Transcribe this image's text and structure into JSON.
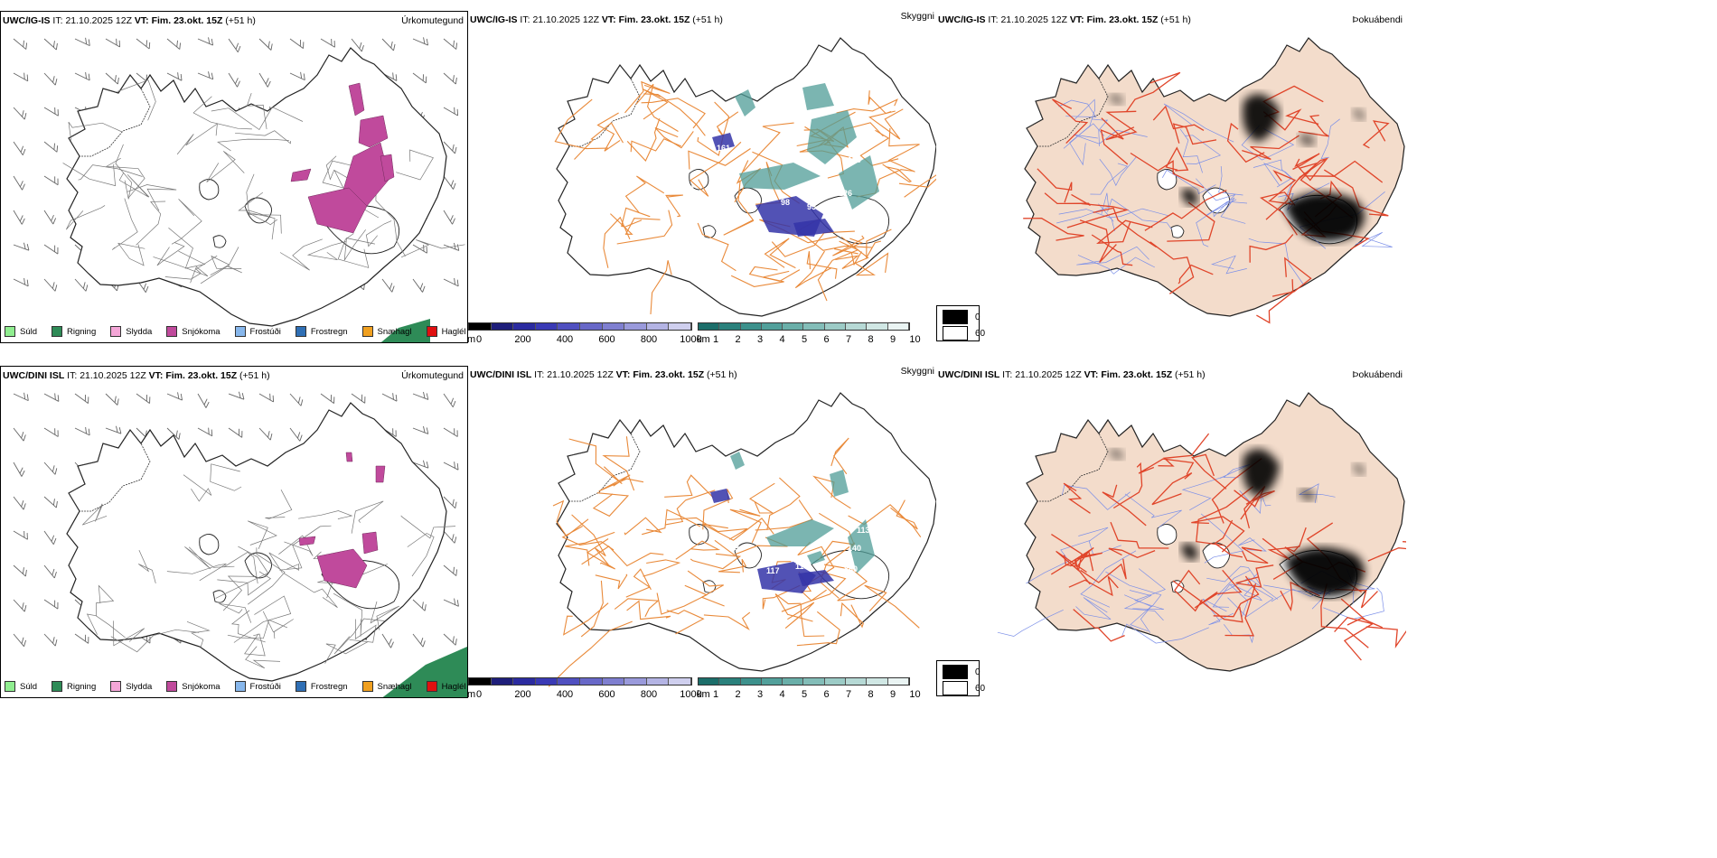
{
  "rows": [
    {
      "model": "UWC/IG-IS",
      "it_label": "IT:",
      "it_value": "21.10.2025 12Z",
      "vt_label": "VT:",
      "vt_value": "Fim. 23.okt. 15Z",
      "lead": "(+51 h)",
      "panel_titles": [
        "Úrkomutegund",
        "Skyggni",
        "Þokuábendi"
      ],
      "visibility_labels": [
        "161",
        "95",
        "149",
        "164",
        "140",
        "126",
        "98",
        "153"
      ]
    },
    {
      "model": "UWC/DINI ISL",
      "it_label": "IT:",
      "it_value": "21.10.2025 12Z",
      "vt_label": "VT:",
      "vt_value": "Fim. 23.okt. 15Z",
      "lead": "(+51 h)",
      "panel_titles": [
        "Úrkomutegund",
        "Skyggni",
        "Þokuábendi"
      ],
      "visibility_labels": [
        "117",
        "118",
        "860",
        "140",
        "113",
        "23"
      ]
    }
  ],
  "precip_legend": [
    {
      "label": "Súld",
      "color": "#90ee90"
    },
    {
      "label": "Rigning",
      "color": "#2e8b57"
    },
    {
      "label": "Slydda",
      "color": "#f4a6d7"
    },
    {
      "label": "Snjókoma",
      "color": "#c04a9c"
    },
    {
      "label": "Frostúði",
      "color": "#87b7ec"
    },
    {
      "label": "Frostregn",
      "color": "#2f6fb5"
    },
    {
      "label": "Snæhagl",
      "color": "#f0a020"
    },
    {
      "label": "Haglél",
      "color": "#e01010"
    }
  ],
  "cloud_base_scale": {
    "unit": "m",
    "ticks": [
      "0",
      "200",
      "400",
      "600",
      "800",
      "1000"
    ],
    "colors": [
      "#000000",
      "#1e1e7a",
      "#2b2ba0",
      "#3a3ab5",
      "#5050c0",
      "#6868c8",
      "#7f7fd0",
      "#9a9adb",
      "#b4b4e4",
      "#cfcfee"
    ]
  },
  "visibility_scale": {
    "unit": "km",
    "ticks": [
      "1",
      "2",
      "3",
      "4",
      "5",
      "6",
      "7",
      "8",
      "9",
      "10"
    ],
    "colors": [
      "#1c6e6a",
      "#2a817c",
      "#3d918c",
      "#52a09b",
      "#6aafa9",
      "#83bdb8",
      "#9ccbc6",
      "#b6d9d5",
      "#d0e7e4",
      "#eaf4f3"
    ]
  },
  "fog_legend": [
    {
      "label": "0",
      "color": "#000000"
    },
    {
      "label": "60",
      "color": "#ffffff"
    }
  ],
  "colors": {
    "land_fog": "#f3dccb",
    "roads_orange": "#e98a3a",
    "roads_red": "#e0452a",
    "rivers": "#7b8fe8",
    "snow": "#c04a9c",
    "rain": "#2e8b57",
    "vis_teal": "#4f9c97",
    "vis_blue": "#3434a8"
  }
}
